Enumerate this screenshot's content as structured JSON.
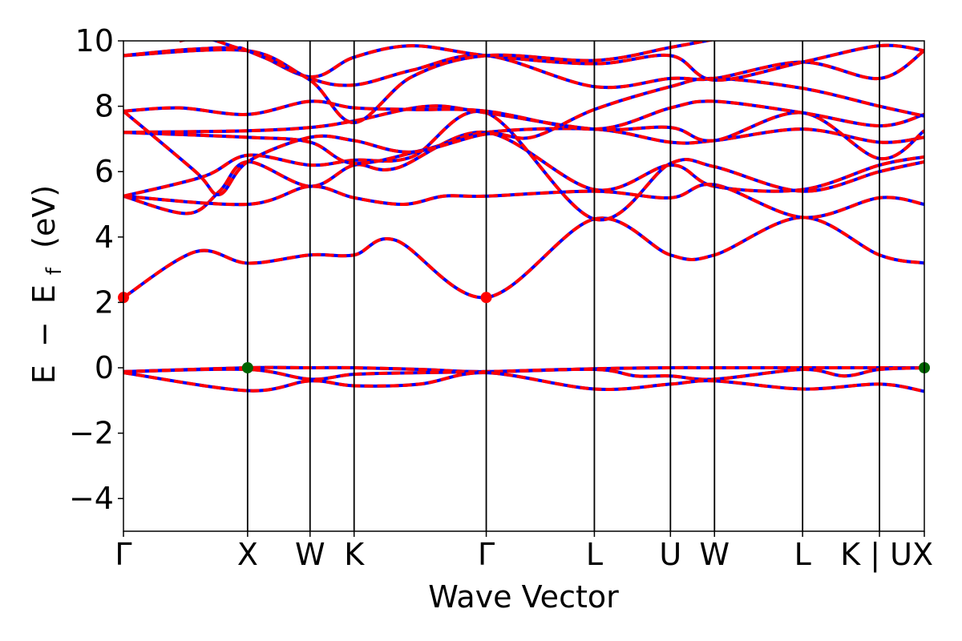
{
  "chart_data": {
    "type": "line",
    "xlabel": "Wave Vector",
    "ylabel_parts": {
      "main1": "E",
      "minus": "−",
      "main2": "E",
      "sub": "f",
      "unit": "(eV)"
    },
    "ylim": [
      -5,
      10
    ],
    "yticks": [
      -4,
      -2,
      0,
      2,
      4,
      6,
      8,
      10
    ],
    "ytick_labels": [
      "−4",
      "−2",
      "0",
      "2",
      "4",
      "6",
      "8",
      "10"
    ],
    "xlim": [
      0,
      1
    ],
    "kpoints": [
      {
        "label": "Γ",
        "x": 0.0
      },
      {
        "label": "X",
        "x": 0.155
      },
      {
        "label": "W",
        "x": 0.233
      },
      {
        "label": "K",
        "x": 0.288
      },
      {
        "label": "Γ",
        "x": 0.453
      },
      {
        "label": "L",
        "x": 0.588
      },
      {
        "label": "U",
        "x": 0.683
      },
      {
        "label": "W",
        "x": 0.738
      },
      {
        "label": "L",
        "x": 0.848
      },
      {
        "label": "K | U",
        "x": 0.944
      },
      {
        "label": "X",
        "x": 1.0
      }
    ],
    "colors": {
      "dft": "#0000ff",
      "fit": "#ff0000",
      "cbm": "#ff0000",
      "vbm": "#006400"
    },
    "markers": [
      {
        "name": "cbm",
        "x": 0.0,
        "y": 2.15
      },
      {
        "name": "cbm",
        "x": 0.453,
        "y": 2.15
      },
      {
        "name": "vbm",
        "x": 0.155,
        "y": 0.0
      },
      {
        "name": "vbm",
        "x": 1.0,
        "y": 0.0
      }
    ],
    "bands": [
      [
        [
          0,
          -0.12
        ],
        [
          0.155,
          0.0
        ],
        [
          0.233,
          0.0
        ],
        [
          0.288,
          0.0
        ],
        [
          0.37,
          -0.05
        ],
        [
          0.453,
          -0.12
        ],
        [
          0.588,
          -0.03
        ],
        [
          0.683,
          0.0
        ],
        [
          0.738,
          0.0
        ],
        [
          0.848,
          0.0
        ],
        [
          0.944,
          0.0
        ],
        [
          1.0,
          0.0
        ]
      ],
      [
        [
          0,
          -0.12
        ],
        [
          0.155,
          -0.05
        ],
        [
          0.233,
          -0.35
        ],
        [
          0.288,
          -0.2
        ],
        [
          0.37,
          -0.15
        ],
        [
          0.453,
          -0.12
        ],
        [
          0.588,
          -0.05
        ],
        [
          0.64,
          -0.25
        ],
        [
          0.683,
          -0.25
        ],
        [
          0.738,
          -0.35
        ],
        [
          0.848,
          -0.05
        ],
        [
          0.9,
          -0.25
        ],
        [
          0.944,
          -0.05
        ],
        [
          1.0,
          0.0
        ]
      ],
      [
        [
          0,
          -0.15
        ],
        [
          0.155,
          -0.7
        ],
        [
          0.233,
          -0.4
        ],
        [
          0.288,
          -0.55
        ],
        [
          0.37,
          -0.5
        ],
        [
          0.453,
          -0.15
        ],
        [
          0.588,
          -0.65
        ],
        [
          0.683,
          -0.5
        ],
        [
          0.738,
          -0.4
        ],
        [
          0.848,
          -0.65
        ],
        [
          0.944,
          -0.5
        ],
        [
          1.0,
          -0.72
        ]
      ],
      [
        [
          0,
          2.15
        ],
        [
          0.09,
          3.55
        ],
        [
          0.155,
          3.2
        ],
        [
          0.233,
          3.45
        ],
        [
          0.288,
          3.45
        ],
        [
          0.34,
          3.9
        ],
        [
          0.453,
          2.15
        ],
        [
          0.588,
          4.55
        ],
        [
          0.683,
          3.45
        ],
        [
          0.738,
          3.45
        ],
        [
          0.848,
          4.6
        ],
        [
          0.944,
          3.45
        ],
        [
          1.0,
          3.2
        ]
      ],
      [
        [
          0,
          5.25
        ],
        [
          0.08,
          4.72
        ],
        [
          0.12,
          5.4
        ],
        [
          0.155,
          6.3
        ],
        [
          0.233,
          5.55
        ],
        [
          0.288,
          6.2
        ],
        [
          0.34,
          6.1
        ],
        [
          0.453,
          7.2
        ],
        [
          0.588,
          5.45
        ],
        [
          0.683,
          6.2
        ],
        [
          0.738,
          5.55
        ],
        [
          0.848,
          5.45
        ],
        [
          0.944,
          6.2
        ],
        [
          1.0,
          6.45
        ]
      ],
      [
        [
          0,
          5.25
        ],
        [
          0.155,
          5.0
        ],
        [
          0.233,
          5.55
        ],
        [
          0.288,
          5.2
        ],
        [
          0.35,
          5.0
        ],
        [
          0.4,
          5.25
        ],
        [
          0.453,
          5.25
        ],
        [
          0.588,
          5.4
        ],
        [
          0.683,
          5.2
        ],
        [
          0.738,
          5.6
        ],
        [
          0.848,
          4.6
        ],
        [
          0.944,
          5.2
        ],
        [
          1.0,
          5.0
        ]
      ],
      [
        [
          0,
          5.25
        ],
        [
          0.1,
          5.85
        ],
        [
          0.155,
          6.5
        ],
        [
          0.233,
          6.2
        ],
        [
          0.288,
          6.35
        ],
        [
          0.36,
          6.45
        ],
        [
          0.453,
          7.8
        ],
        [
          0.588,
          4.55
        ],
        [
          0.683,
          6.25
        ],
        [
          0.738,
          6.15
        ],
        [
          0.848,
          5.4
        ],
        [
          0.944,
          6.0
        ],
        [
          1.0,
          6.3
        ]
      ],
      [
        [
          0,
          7.2
        ],
        [
          0.155,
          7.05
        ],
        [
          0.233,
          6.9
        ],
        [
          0.288,
          6.25
        ],
        [
          0.38,
          6.7
        ],
        [
          0.453,
          7.2
        ],
        [
          0.588,
          7.3
        ],
        [
          0.683,
          6.9
        ],
        [
          0.738,
          6.95
        ],
        [
          0.848,
          7.3
        ],
        [
          0.944,
          6.9
        ],
        [
          1.0,
          7.05
        ]
      ],
      [
        [
          0,
          7.2
        ],
        [
          0.155,
          7.25
        ],
        [
          0.233,
          7.35
        ],
        [
          0.288,
          7.55
        ],
        [
          0.38,
          8.0
        ],
        [
          0.453,
          7.8
        ],
        [
          0.588,
          7.3
        ],
        [
          0.683,
          7.35
        ],
        [
          0.738,
          6.95
        ],
        [
          0.848,
          7.8
        ],
        [
          0.944,
          6.4
        ],
        [
          1.0,
          7.25
        ]
      ],
      [
        [
          0,
          7.85
        ],
        [
          0.07,
          7.95
        ],
        [
          0.155,
          7.75
        ],
        [
          0.233,
          8.15
        ],
        [
          0.288,
          7.95
        ],
        [
          0.36,
          7.9
        ],
        [
          0.453,
          7.85
        ],
        [
          0.588,
          7.3
        ],
        [
          0.683,
          7.95
        ],
        [
          0.738,
          8.15
        ],
        [
          0.848,
          7.8
        ],
        [
          0.944,
          7.4
        ],
        [
          1.0,
          7.75
        ]
      ],
      [
        [
          0,
          7.85
        ],
        [
          0.09,
          6.0
        ],
        [
          0.12,
          5.3
        ],
        [
          0.155,
          6.3
        ],
        [
          0.233,
          7.05
        ],
        [
          0.288,
          6.95
        ],
        [
          0.36,
          6.6
        ],
        [
          0.453,
          7.15
        ],
        [
          0.51,
          7.05
        ],
        [
          0.588,
          7.9
        ],
        [
          0.683,
          8.6
        ],
        [
          0.738,
          8.85
        ],
        [
          0.848,
          8.55
        ],
        [
          0.944,
          8.0
        ],
        [
          1.0,
          7.7
        ]
      ],
      [
        [
          0,
          9.55
        ],
        [
          0.155,
          9.7
        ],
        [
          0.233,
          8.85
        ],
        [
          0.288,
          8.65
        ],
        [
          0.36,
          9.1
        ],
        [
          0.453,
          9.55
        ],
        [
          0.588,
          8.6
        ],
        [
          0.683,
          8.85
        ],
        [
          0.738,
          8.85
        ],
        [
          0.848,
          9.35
        ],
        [
          0.944,
          8.85
        ],
        [
          1.0,
          9.7
        ]
      ],
      [
        [
          0,
          9.55
        ],
        [
          0.09,
          9.75
        ],
        [
          0.155,
          9.7
        ],
        [
          0.233,
          8.9
        ],
        [
          0.288,
          9.5
        ],
        [
          0.36,
          9.85
        ],
        [
          0.453,
          9.55
        ],
        [
          0.588,
          9.3
        ],
        [
          0.683,
          9.55
        ],
        [
          0.738,
          8.8
        ],
        [
          0.848,
          9.35
        ],
        [
          0.944,
          9.85
        ],
        [
          1.0,
          9.7
        ]
      ],
      [
        [
          0.07,
          10.0
        ],
        [
          0.1,
          10.1
        ],
        [
          0.14,
          9.8
        ],
        [
          0.155,
          9.7
        ],
        [
          0.233,
          8.8
        ],
        [
          0.288,
          7.5
        ],
        [
          0.36,
          8.9
        ],
        [
          0.453,
          9.55
        ],
        [
          0.588,
          9.4
        ],
        [
          0.683,
          9.8
        ],
        [
          0.738,
          10.05
        ]
      ]
    ]
  }
}
